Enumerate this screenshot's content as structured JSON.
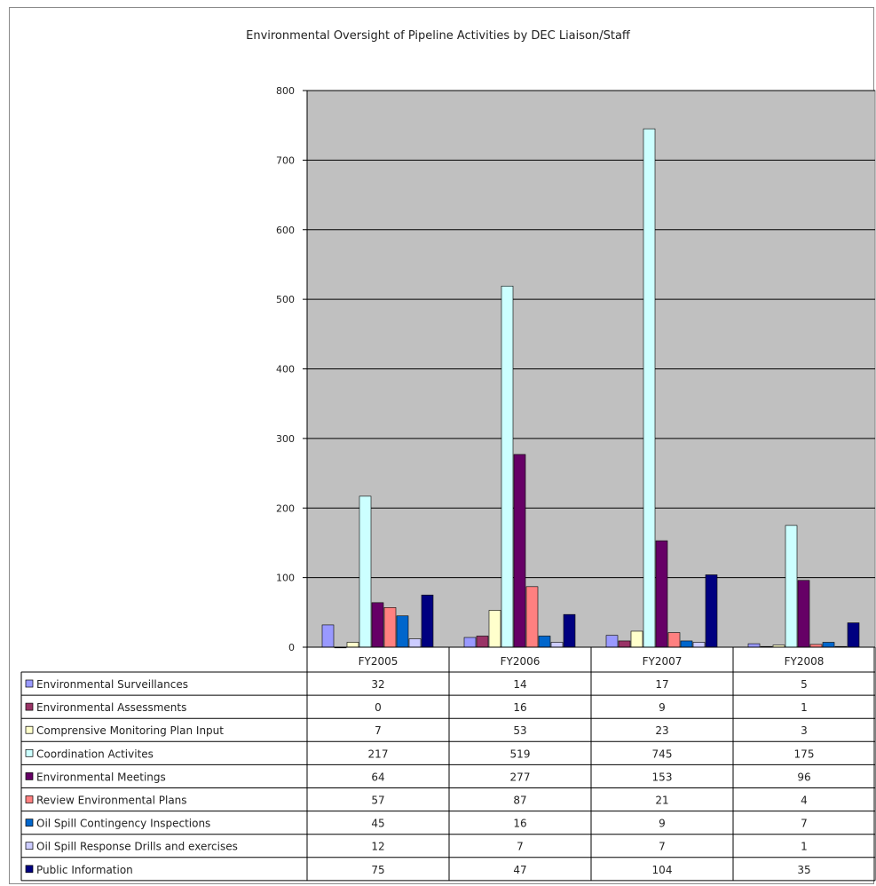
{
  "chart_data": {
    "type": "bar",
    "title": "Environmental Oversight of Pipeline Activities by DEC Liaison/Staff",
    "categories": [
      "FY2005",
      "FY2006",
      "FY2007",
      "FY2008"
    ],
    "ylim": [
      0,
      800
    ],
    "yticks": [
      "0",
      "100",
      "200",
      "300",
      "400",
      "500",
      "600",
      "700",
      "800"
    ],
    "grid": true,
    "legend": "data-table-below",
    "series": [
      {
        "name": "Environmental Surveillances",
        "values": [
          32,
          14,
          17,
          5
        ],
        "color": "#9999ff"
      },
      {
        "name": "Environmental Assessments",
        "values": [
          0,
          16,
          9,
          1
        ],
        "color": "#993366"
      },
      {
        "name": "Comprensive Monitoring Plan Input",
        "values": [
          7,
          53,
          23,
          3
        ],
        "color": "#ffffcc"
      },
      {
        "name": "Coordination Activites",
        "values": [
          217,
          519,
          745,
          175
        ],
        "color": "#ccffff"
      },
      {
        "name": "Environmental Meetings",
        "values": [
          64,
          277,
          153,
          96
        ],
        "color": "#660066"
      },
      {
        "name": "Review Environmental Plans",
        "values": [
          57,
          87,
          21,
          4
        ],
        "color": "#ff8080"
      },
      {
        "name": "Oil Spill Contingency Inspections",
        "values": [
          45,
          16,
          9,
          7
        ],
        "color": "#0066cc"
      },
      {
        "name": "Oil Spill Response Drills and exercises",
        "values": [
          12,
          7,
          7,
          1
        ],
        "color": "#ccccff"
      },
      {
        "name": "Public Information",
        "values": [
          75,
          47,
          104,
          35
        ],
        "color": "#000080"
      }
    ]
  }
}
